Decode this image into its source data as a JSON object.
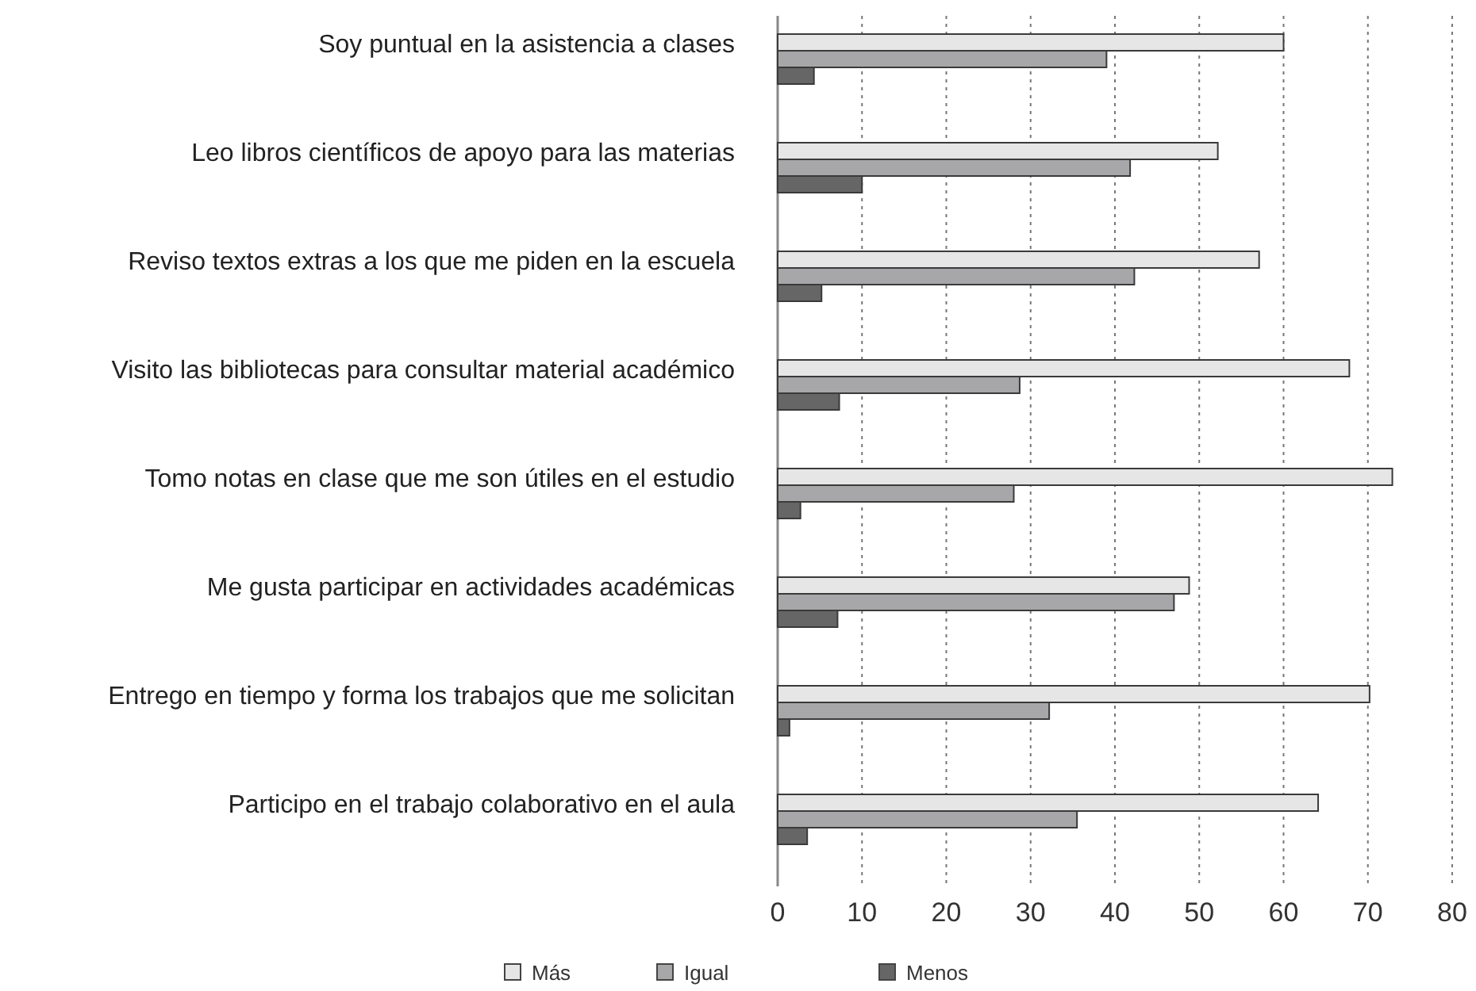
{
  "chart_data": {
    "type": "bar",
    "orientation": "horizontal",
    "categories": [
      "Soy puntual en la asistencia a clases",
      "Leo libros científicos de apoyo para las materias",
      "Reviso textos extras a los que me piden en la escuela",
      "Visito las bibliotecas para consultar material académico",
      "Tomo notas en clase que me son útiles en el estudio",
      "Me gusta participar en actividades académicas",
      "Entrego en tiempo y forma los trabajos que me solicitan",
      "Participo en el trabajo colaborativo en el aula"
    ],
    "series": [
      {
        "name": "Más",
        "color": "#e6e6e6",
        "values": [
          60,
          52.2,
          57.1,
          67.8,
          72.9,
          48.8,
          70.2,
          64.1
        ]
      },
      {
        "name": "Igual",
        "color": "#a7a7a9",
        "values": [
          39,
          41.8,
          42.3,
          28.7,
          28,
          47,
          32.2,
          35.5
        ]
      },
      {
        "name": "Menos",
        "color": "#666666",
        "values": [
          4.3,
          10,
          5.2,
          7.3,
          2.7,
          7.1,
          1.4,
          3.5
        ]
      }
    ],
    "xlim": [
      0,
      80
    ],
    "xticks": [
      0,
      10,
      20,
      30,
      40,
      50,
      60,
      70,
      80
    ],
    "grid": "x",
    "legend": "bottom"
  }
}
